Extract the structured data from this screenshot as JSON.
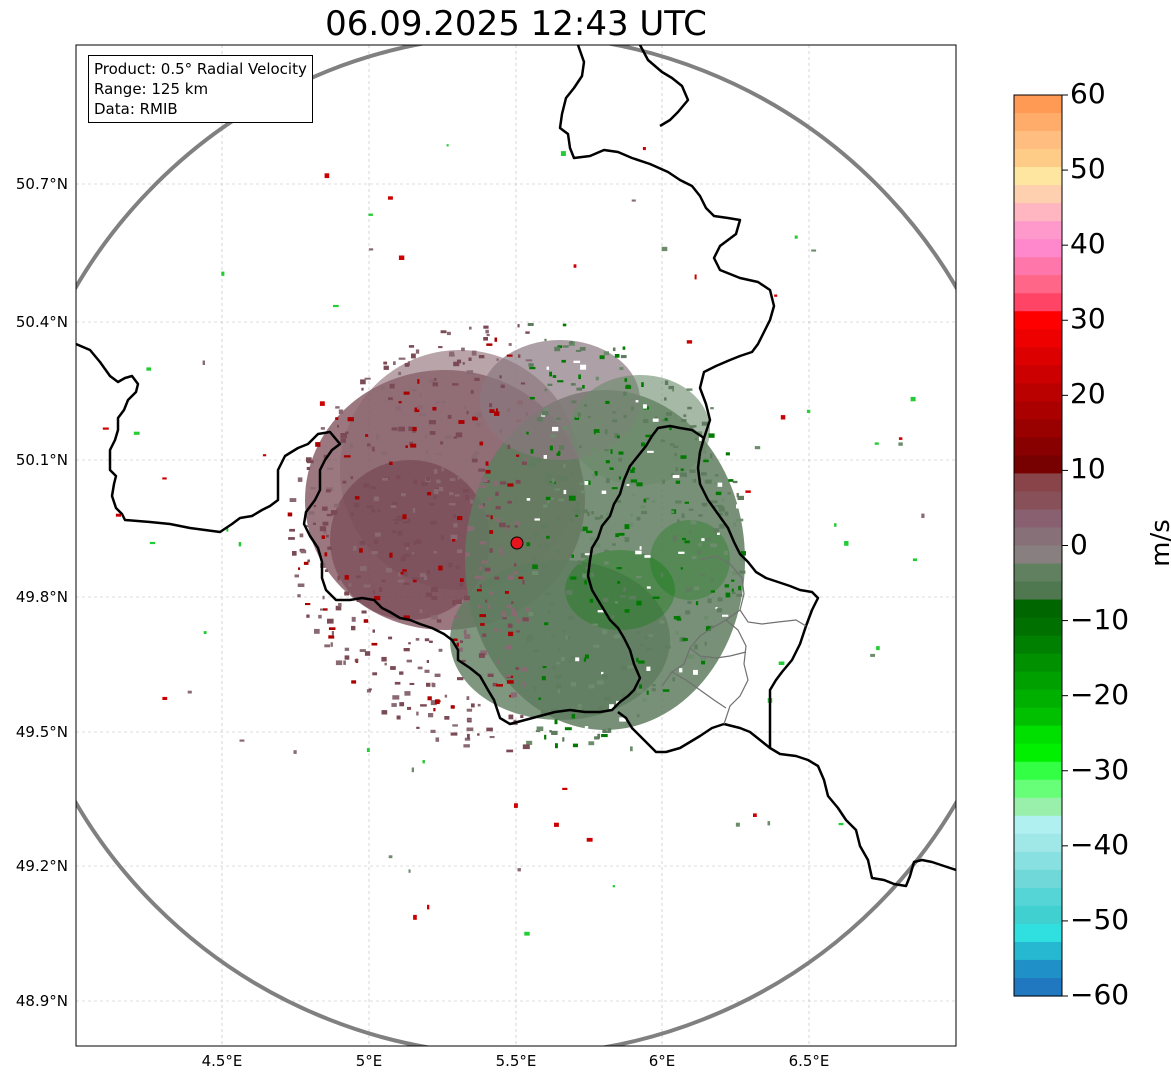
{
  "title": "06.09.2025 12:43 UTC",
  "info_box": {
    "line1": "Product: 0.5° Radial Velocity",
    "line2": "Range: 125 km",
    "line3": "Data: RMIB"
  },
  "axes": {
    "lon_ticks": [
      "4.5°E",
      "5°E",
      "5.5°E",
      "6°E",
      "6.5°E"
    ],
    "lat_ticks": [
      "50.7°N",
      "50.4°N",
      "50.1°N",
      "49.8°N",
      "49.5°N",
      "49.2°N",
      "48.9°N"
    ],
    "lon_range": [
      4.0,
      7.0
    ],
    "lat_range": [
      48.8,
      50.98
    ]
  },
  "radar_site": {
    "lon": 5.505,
    "lat": 49.915,
    "marker_color": "#e8141e"
  },
  "range_ring": {
    "radius_km": 125,
    "color": "#808080"
  },
  "colorbar": {
    "label": "m/s",
    "ticks": [
      "60",
      "50",
      "40",
      "30",
      "20",
      "10",
      "0",
      "−10",
      "−20",
      "−30",
      "−40",
      "−50",
      "−60"
    ],
    "range": [
      -60,
      60
    ],
    "colors_top_to_bottom": [
      "#ff9a55",
      "#ffac6a",
      "#ffbe7f",
      "#ffcc88",
      "#ffe6a0",
      "#ffd0b0",
      "#ffb6c1",
      "#ff99cc",
      "#ff88cc",
      "#ff77aa",
      "#ff6688",
      "#ff4466",
      "#ff0000",
      "#ee0000",
      "#dd0000",
      "#cc0000",
      "#bb0000",
      "#aa0000",
      "#990000",
      "#880000",
      "#770000",
      "#884448",
      "#885058",
      "#886070",
      "#887078",
      "#888080",
      "#608060",
      "#507850",
      "#006600",
      "#007000",
      "#008000",
      "#009000",
      "#00a000",
      "#00b000",
      "#00c000",
      "#00e000",
      "#00f000",
      "#33ff44",
      "#66ff77",
      "#99f0aa",
      "#b0f0f0",
      "#a0e8e8",
      "#88e0e0",
      "#70d8d8",
      "#55d5d5",
      "#40d0d0",
      "#30e0e0",
      "#25b8d0",
      "#2090c8",
      "#1f78c0"
    ]
  }
}
